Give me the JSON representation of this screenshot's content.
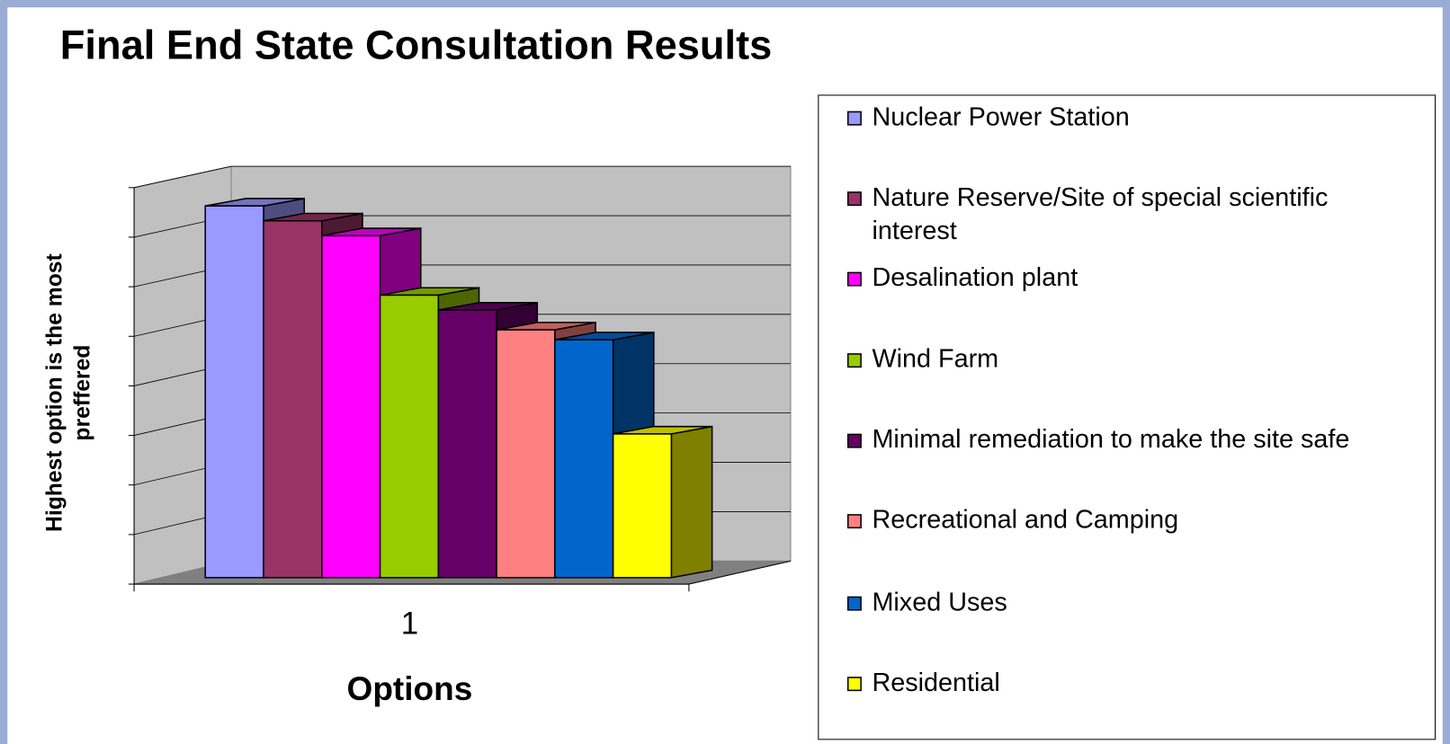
{
  "chart_data": {
    "type": "bar3d",
    "title": "Final End State Consultation Results",
    "x_label": "Options",
    "y_label": "Highest option is the most preffered",
    "categories": [
      "1"
    ],
    "ylim": [
      0,
      8
    ],
    "yticks": [
      0,
      1,
      2,
      3,
      4,
      5,
      6,
      7,
      8
    ],
    "grid": true,
    "legend": "right",
    "series": [
      {
        "name": "Nuclear Power Station",
        "color": "#9999ff",
        "values": [
          7.5
        ]
      },
      {
        "name": "Nature Reserve/Site of special scientific interest",
        "color": "#993366",
        "values": [
          7.2
        ]
      },
      {
        "name": "Desalination plant",
        "color": "#ff00ff",
        "values": [
          6.9
        ]
      },
      {
        "name": "Wind Farm",
        "color": "#99cc00",
        "values": [
          5.7
        ]
      },
      {
        "name": "Minimal remediation to make the site safe",
        "color": "#660066",
        "values": [
          5.4
        ]
      },
      {
        "name": "Recreational and Camping",
        "color": "#ff8080",
        "values": [
          5.0
        ]
      },
      {
        "name": "Mixed Uses",
        "color": "#0066cc",
        "values": [
          4.8
        ]
      },
      {
        "name": "Residential",
        "color": "#ffff00",
        "values": [
          2.9
        ]
      }
    ]
  }
}
